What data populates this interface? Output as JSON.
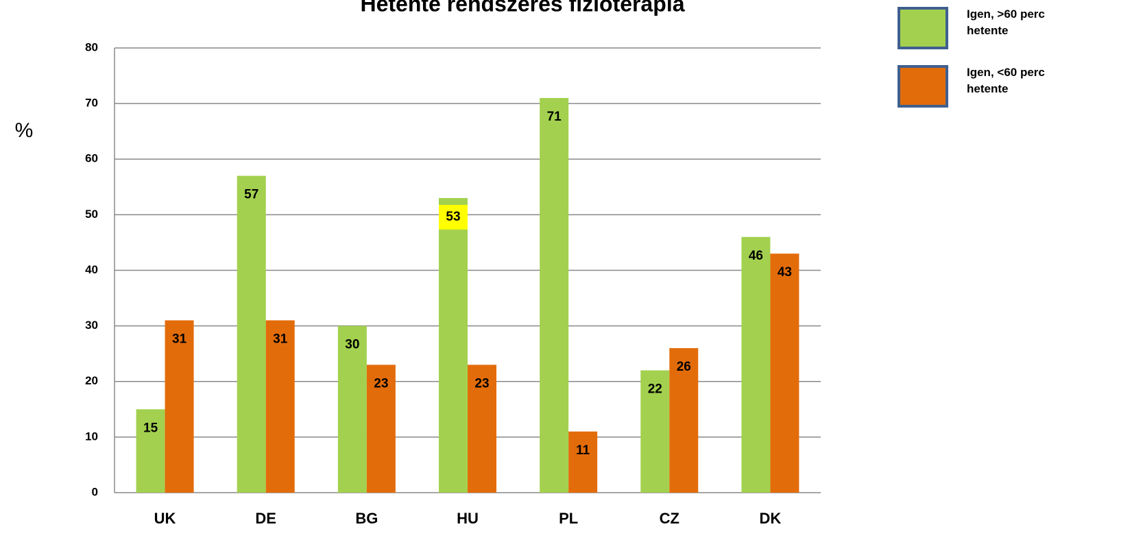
{
  "chart_data": {
    "type": "bar",
    "title": "Hetente rendszeres fizioterápia",
    "ylabel": "%",
    "categories": [
      "UK",
      "DE",
      "BG",
      "HU",
      "PL",
      "CZ",
      "DK"
    ],
    "series": [
      {
        "name": "Igen, >60 perc hetente",
        "color": "#a3d14f",
        "values": [
          15,
          57,
          30,
          53,
          71,
          22,
          46
        ]
      },
      {
        "name": "Igen, <60 perc hetente",
        "color": "#e36c0a",
        "values": [
          31,
          31,
          23,
          23,
          11,
          26,
          43
        ]
      }
    ],
    "ylim": [
      0,
      80
    ],
    "yticks": [
      0,
      10,
      20,
      30,
      40,
      50,
      60,
      70,
      80
    ],
    "grid": true,
    "legend": "top-right",
    "value_label_highlight": [
      {
        "series": 0,
        "index": 3,
        "color": "#ffff00"
      }
    ]
  }
}
